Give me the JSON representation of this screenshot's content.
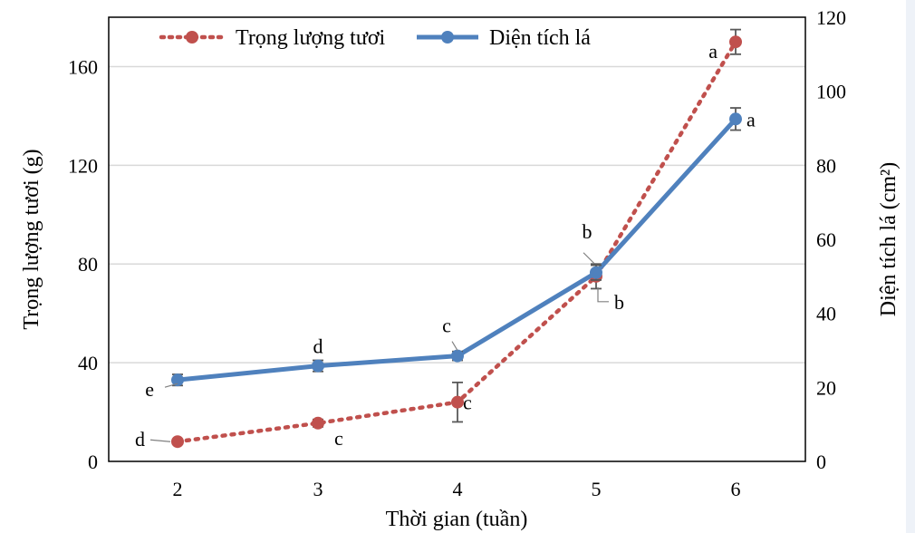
{
  "chart_data": {
    "type": "line",
    "xlabel": "Thời gian (tuần)",
    "ylabel_left": "Trọng lượng tươi (g)",
    "ylabel_right": "Diện tích lá  (cm²)",
    "x": [
      2,
      3,
      4,
      5,
      6
    ],
    "ylim_left": [
      0,
      180
    ],
    "yticks_left": [
      0,
      40,
      80,
      120,
      160
    ],
    "ylim_right": [
      0,
      120
    ],
    "yticks_right": [
      0,
      20,
      40,
      60,
      80,
      100,
      120
    ],
    "grid": "horizontal",
    "legend_position": "top",
    "series": [
      {
        "name": "Trọng lượng tươi",
        "axis": "left",
        "style": "dotted",
        "color": "#c0504d",
        "values": [
          8,
          15.5,
          24,
          75,
          170
        ],
        "errors": [
          1,
          1.5,
          8,
          5,
          5
        ],
        "labels": [
          "d",
          "c",
          "c",
          "b",
          "a"
        ]
      },
      {
        "name": "Diện tích lá",
        "axis": "right",
        "style": "solid",
        "color": "#4f81bd",
        "values": [
          22,
          25.8,
          28.5,
          51,
          92.5
        ],
        "errors": [
          1.5,
          1.5,
          1.2,
          2,
          3
        ],
        "labels": [
          "e",
          "d",
          "c",
          "b",
          "a"
        ]
      }
    ]
  }
}
